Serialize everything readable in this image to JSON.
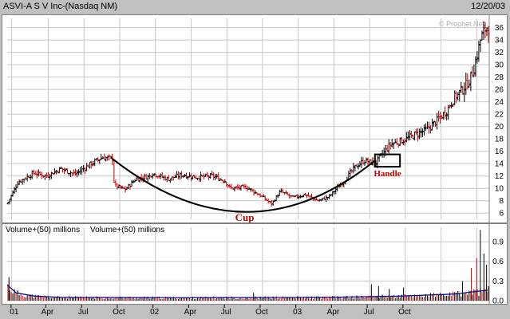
{
  "header": {
    "title": "ASVI-A S V Inc-(Nasdaq NM)",
    "date": "12/20/03",
    "watermark": "© Prophet.Net"
  },
  "volume_header": {
    "label1": "Volume+(50) millions",
    "label2": "Volume+(50) millions"
  },
  "annotations": {
    "cup": "Cup",
    "handle": "Handle"
  },
  "colors": {
    "up": "#000000",
    "down": "#cc0000",
    "annotation": "#cc0000",
    "volume_line": "#000080",
    "grid": "#c8c8c8"
  },
  "chart_data": [
    {
      "type": "line",
      "series_style": "ohlc",
      "title": "ASVI-A S V Inc-(Nasdaq NM)",
      "y_axis": {
        "side": "right",
        "ylim": [
          5,
          37.5
        ],
        "ticks": [
          6,
          8,
          10,
          12,
          14,
          16,
          18,
          20,
          22,
          24,
          26,
          28,
          30,
          32,
          34,
          36
        ]
      },
      "x_axis": {
        "ticks": [
          "01",
          "Apr",
          "Jul",
          "Oct",
          "02",
          "Apr",
          "Jul",
          "Oct",
          "03",
          "Apr",
          "Jul",
          "Oct"
        ]
      },
      "grid": true,
      "price_path": [
        {
          "t": 0.0,
          "price": 7.5
        },
        {
          "t": 0.6,
          "price": 11.0
        },
        {
          "t": 1.5,
          "price": 12.5
        },
        {
          "t": 2.2,
          "price": 12.0
        },
        {
          "t": 3.0,
          "price": 13.2
        },
        {
          "t": 3.8,
          "price": 12.3
        },
        {
          "t": 4.6,
          "price": 13.8
        },
        {
          "t": 5.3,
          "price": 15.0
        },
        {
          "t": 5.9,
          "price": 14.8
        },
        {
          "t": 6.0,
          "price": 10.5
        },
        {
          "t": 6.6,
          "price": 9.8
        },
        {
          "t": 7.2,
          "price": 11.5
        },
        {
          "t": 8.0,
          "price": 12.0
        },
        {
          "t": 8.1,
          "price": 12.5
        },
        {
          "t": 9.0,
          "price": 11.5
        },
        {
          "t": 9.8,
          "price": 12.2
        },
        {
          "t": 10.6,
          "price": 11.8
        },
        {
          "t": 11.5,
          "price": 12.0
        },
        {
          "t": 12.2,
          "price": 11.2
        },
        {
          "t": 12.5,
          "price": 10.0
        },
        {
          "t": 13.4,
          "price": 10.2
        },
        {
          "t": 14.2,
          "price": 8.8
        },
        {
          "t": 14.8,
          "price": 7.5
        },
        {
          "t": 15.3,
          "price": 9.5
        },
        {
          "t": 16.0,
          "price": 8.5
        },
        {
          "t": 16.7,
          "price": 9.0
        },
        {
          "t": 17.4,
          "price": 8.0
        },
        {
          "t": 18.0,
          "price": 8.6
        },
        {
          "t": 18.8,
          "price": 11.0
        },
        {
          "t": 19.5,
          "price": 13.5
        },
        {
          "t": 20.0,
          "price": 14.5
        },
        {
          "t": 20.6,
          "price": 14.0
        },
        {
          "t": 21.0,
          "price": 15.5
        },
        {
          "t": 21.5,
          "price": 17.2
        },
        {
          "t": 22.2,
          "price": 17.8
        },
        {
          "t": 22.9,
          "price": 18.8
        },
        {
          "t": 23.5,
          "price": 19.5
        },
        {
          "t": 24.1,
          "price": 21.0
        },
        {
          "t": 24.6,
          "price": 22.5
        },
        {
          "t": 25.0,
          "price": 24.5
        },
        {
          "t": 25.5,
          "price": 26.0
        },
        {
          "t": 25.9,
          "price": 27.5
        },
        {
          "t": 26.2,
          "price": 30.0
        },
        {
          "t": 26.5,
          "price": 34.0
        },
        {
          "t": 26.8,
          "price": 36.0
        }
      ],
      "cup_curve": {
        "start": {
          "t": 5.8,
          "price": 15.0
        },
        "bottom": {
          "t": 13.3,
          "price": 6.2
        },
        "end": {
          "t": 20.6,
          "price": 14.5
        }
      },
      "handle_box": {
        "t0": 20.6,
        "t1": 22.0,
        "price_low": 13.5,
        "price_high": 15.5
      }
    },
    {
      "type": "bar",
      "title": "Volume+(50) millions",
      "y_axis": {
        "side": "right",
        "ylim": [
          0,
          1.12
        ],
        "ticks": [
          "0.0",
          "0.3",
          "0.6",
          "0.9"
        ]
      },
      "moving_average": [
        {
          "t": 0.0,
          "v": 0.24
        },
        {
          "t": 0.5,
          "v": 0.12
        },
        {
          "t": 1.5,
          "v": 0.07
        },
        {
          "t": 3.0,
          "v": 0.05
        },
        {
          "t": 10.0,
          "v": 0.045
        },
        {
          "t": 18.0,
          "v": 0.05
        },
        {
          "t": 22.0,
          "v": 0.07
        },
        {
          "t": 25.0,
          "v": 0.1
        },
        {
          "t": 26.9,
          "v": 0.16
        }
      ],
      "spikes": [
        {
          "t": 0.1,
          "v": 0.36
        },
        {
          "t": 13.8,
          "v": 0.12
        },
        {
          "t": 20.4,
          "v": 0.25
        },
        {
          "t": 20.8,
          "v": 0.22
        },
        {
          "t": 21.4,
          "v": 0.18
        },
        {
          "t": 22.2,
          "v": 0.2
        },
        {
          "t": 25.5,
          "v": 0.3
        },
        {
          "t": 26.0,
          "v": 0.5
        },
        {
          "t": 26.3,
          "v": 0.65
        },
        {
          "t": 26.5,
          "v": 1.08
        },
        {
          "t": 26.7,
          "v": 0.72
        },
        {
          "t": 26.85,
          "v": 0.55
        }
      ]
    }
  ]
}
